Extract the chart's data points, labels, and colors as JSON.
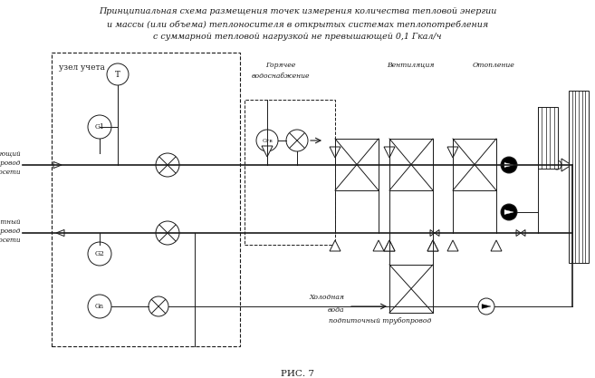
{
  "title_lines": [
    "Принципиальная схема размещения точек измерения количества тепловой энергии",
    "и массы (или объема) теплоносителя в открытых системах теплопотребления",
    "с суммарной тепловой нагрузкой не превышающей 0,1 Гкал/ч"
  ],
  "caption": "РИС. 7",
  "bg_color": "#ffffff",
  "line_color": "#1a1a1a"
}
